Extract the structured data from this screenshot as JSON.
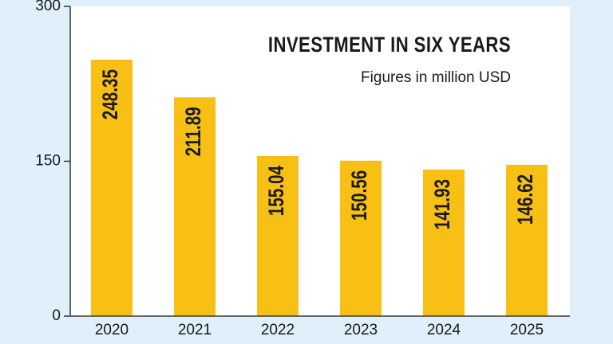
{
  "chart_data": {
    "type": "bar",
    "title": "INVESTMENT IN SIX YEARS",
    "subtitle": "Figures in million USD",
    "categories": [
      "2020",
      "2021",
      "2022",
      "2023",
      "2024",
      "2025"
    ],
    "values": [
      248.35,
      211.89,
      155.04,
      150.56,
      141.93,
      146.62
    ],
    "color": "#f8bf14",
    "ylim": [
      0,
      300
    ],
    "yticks": [
      0,
      150,
      300
    ],
    "grid": false
  }
}
